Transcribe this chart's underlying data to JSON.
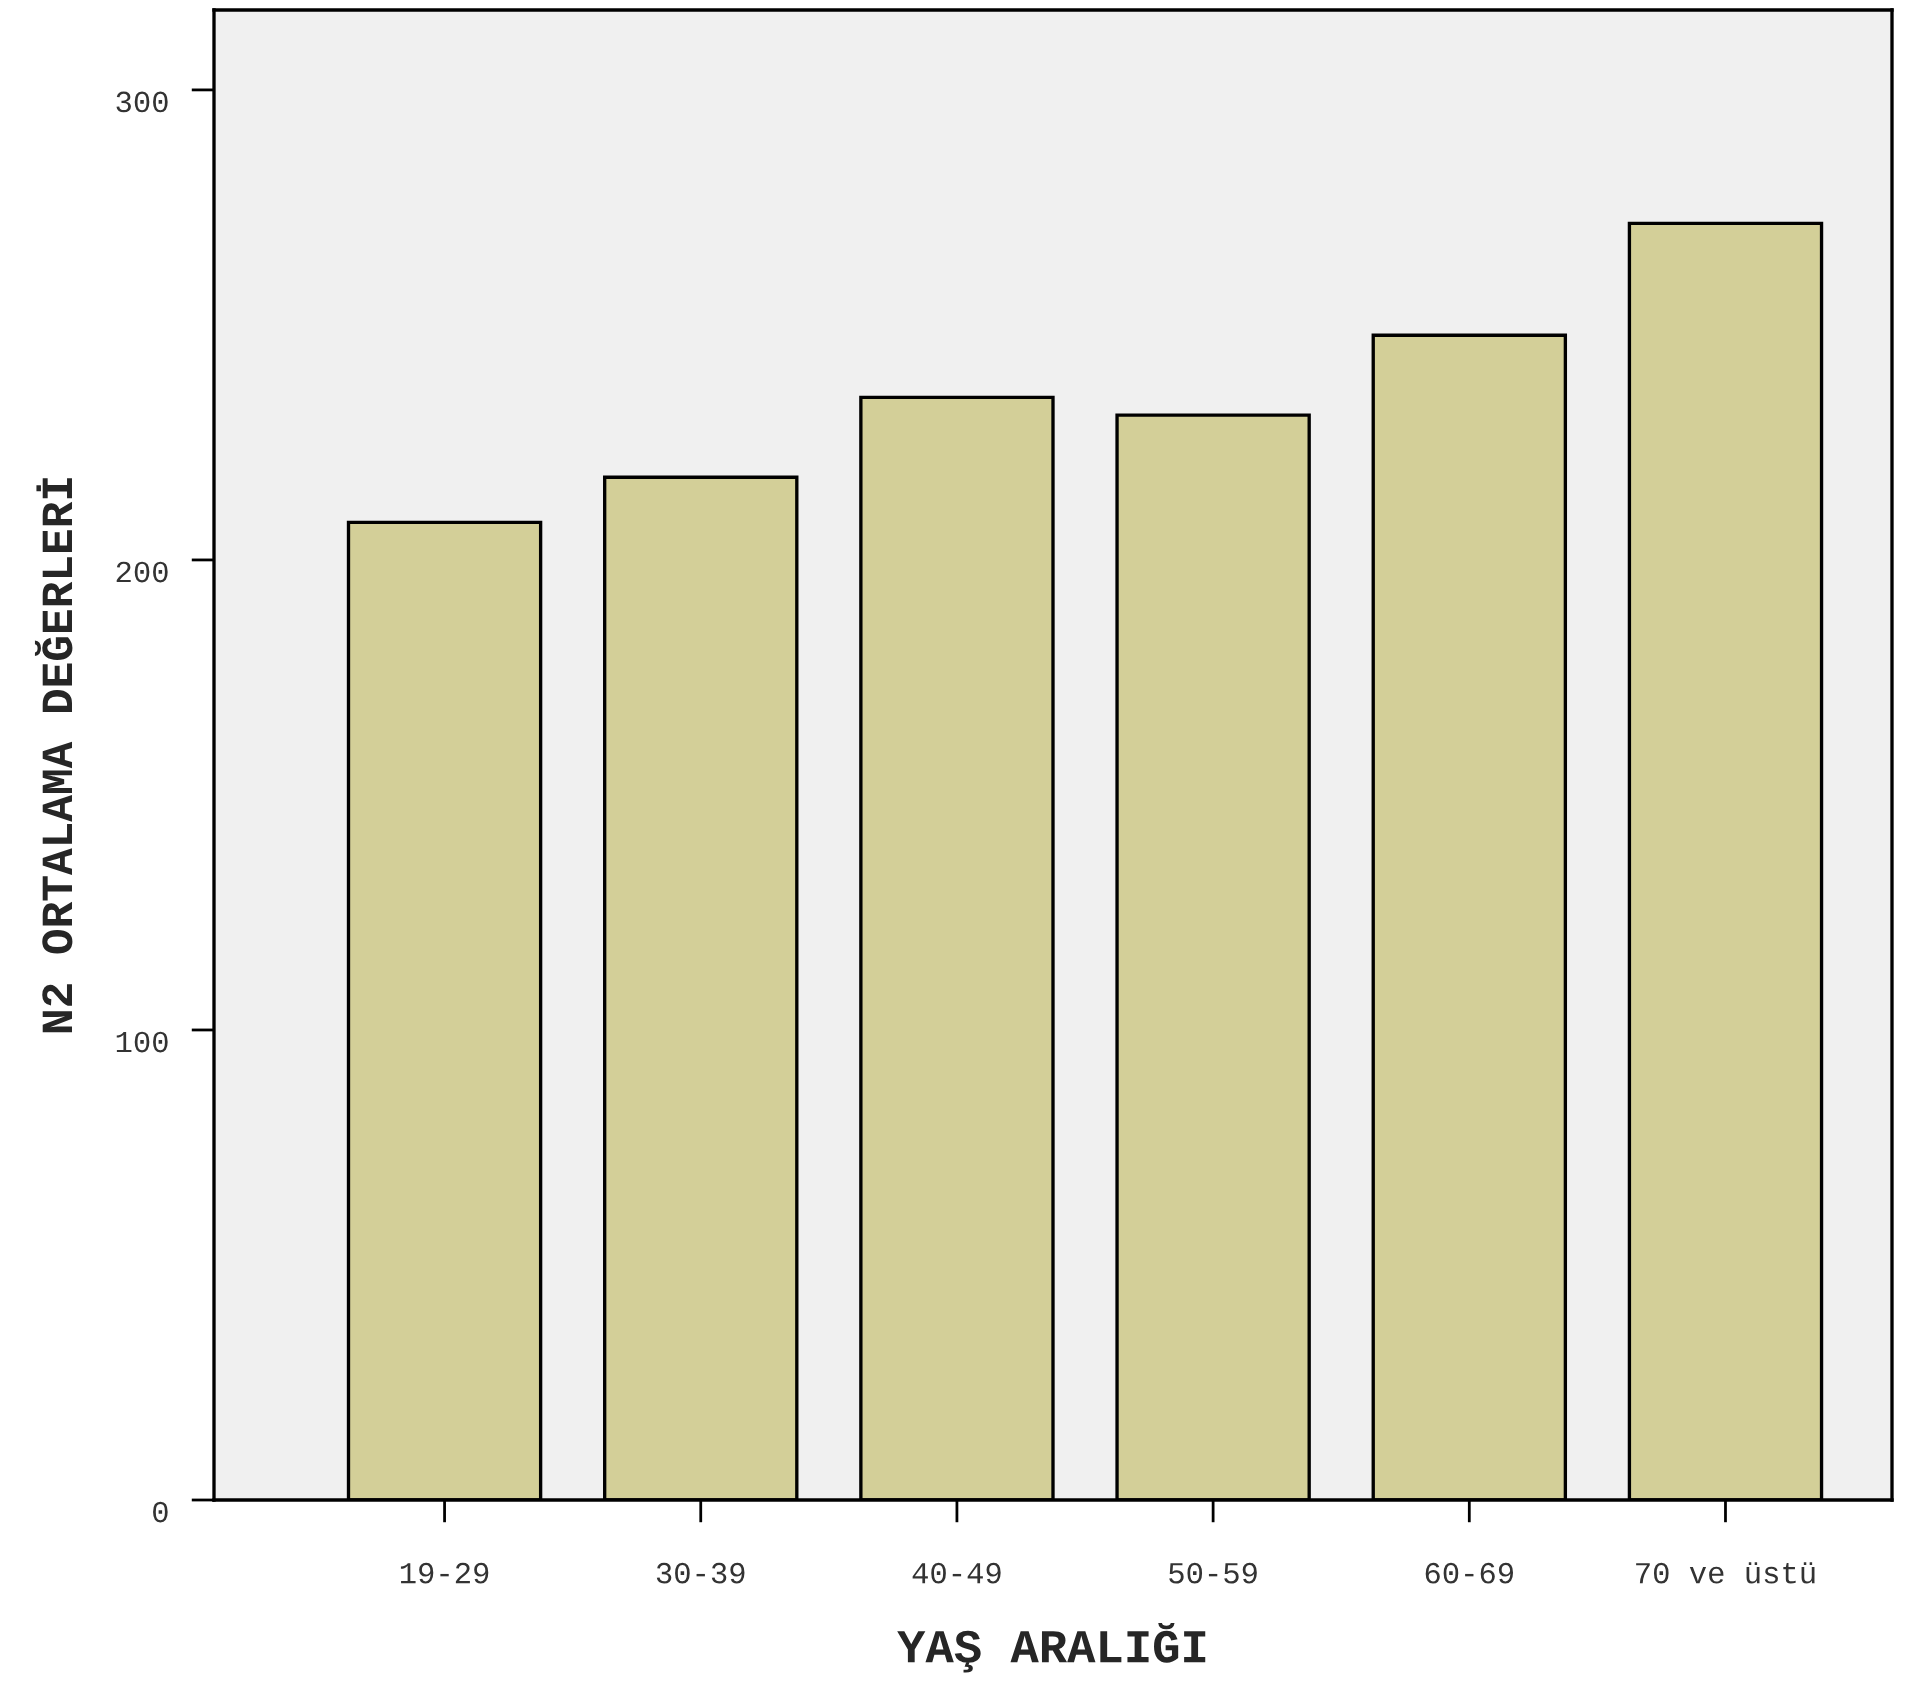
{
  "chart_data": {
    "type": "bar",
    "xlabel": "YAŞ ARALIĞI",
    "ylabel": "N2 ORTALAMA DEĞERLERİ",
    "categories": [
      "19-29",
      "30-39",
      "40-49",
      "50-59",
      "60-69",
      "70 ve üstü"
    ],
    "values": [
      208,
      217.6,
      234.6,
      230.8,
      247.8,
      271.6
    ],
    "color": "#d3cf98",
    "ylim": [
      0,
      317
    ],
    "yticks": [
      0,
      100,
      200,
      300
    ],
    "grid": false,
    "legend": false
  }
}
